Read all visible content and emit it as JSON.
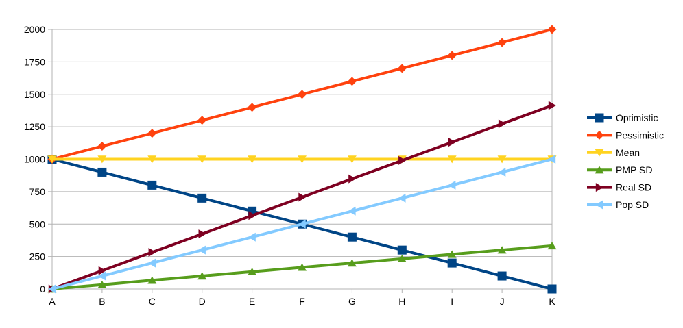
{
  "chart_data": {
    "type": "line",
    "categories": [
      "A",
      "B",
      "C",
      "D",
      "E",
      "F",
      "G",
      "H",
      "I",
      "J",
      "K"
    ],
    "ylim": [
      0,
      2000
    ],
    "yticks": [
      0,
      250,
      500,
      750,
      1000,
      1250,
      1500,
      1750,
      2000
    ],
    "grid": true,
    "legend": "right",
    "series": [
      {
        "name": "Optimistic",
        "color": "#004586",
        "marker": "square",
        "values": [
          1000,
          900,
          800,
          700,
          600,
          500,
          400,
          300,
          200,
          100,
          0
        ]
      },
      {
        "name": "Pessimistic",
        "color": "#ff420e",
        "marker": "diamond",
        "values": [
          1000,
          1100,
          1200,
          1300,
          1400,
          1500,
          1600,
          1700,
          1800,
          1900,
          2000
        ]
      },
      {
        "name": "Mean",
        "color": "#ffd320",
        "marker": "triangle-down",
        "values": [
          1000,
          1000,
          1000,
          1000,
          1000,
          1000,
          1000,
          1000,
          1000,
          1000,
          1000
        ]
      },
      {
        "name": "PMP SD",
        "color": "#579d1c",
        "marker": "triangle-up",
        "values": [
          0,
          33,
          67,
          100,
          133,
          167,
          200,
          233,
          267,
          300,
          333
        ]
      },
      {
        "name": "Real SD",
        "color": "#7e0021",
        "marker": "triangle-right",
        "values": [
          0,
          141,
          283,
          424,
          566,
          707,
          849,
          990,
          1131,
          1273,
          1414
        ]
      },
      {
        "name": "Pop SD",
        "color": "#83caff",
        "marker": "triangle-left",
        "values": [
          0,
          100,
          200,
          300,
          400,
          500,
          600,
          700,
          800,
          900,
          1000
        ]
      }
    ]
  }
}
